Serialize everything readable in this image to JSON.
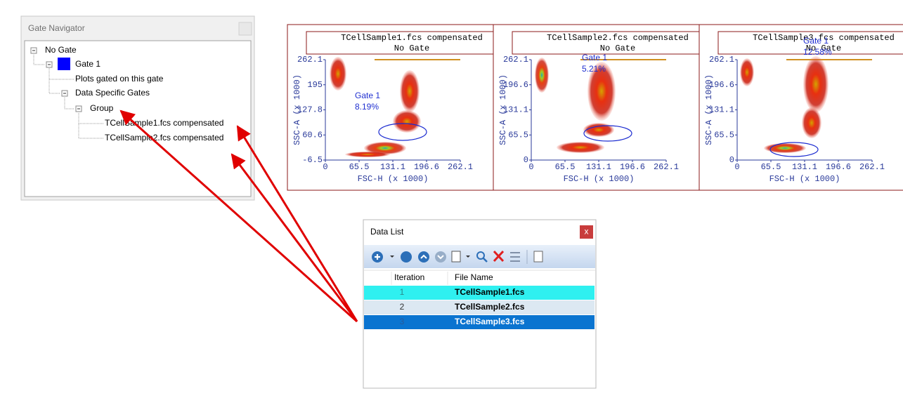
{
  "gate_navigator": {
    "title": "Gate Navigator",
    "tree": [
      "No Gate",
      "Gate 1",
      "Plots gated on this gate",
      "Data Specific Gates",
      "Group",
      "TCellSample1.fcs compensated",
      "TCellSample2.fcs compensated"
    ]
  },
  "plots": [
    {
      "title": "TCellSample1.fcs compensated",
      "subtitle": "No Gate",
      "gate_label": "Gate 1",
      "gate_percent": "8.19%",
      "y_label": "SSC-A (x 1000)",
      "x_label": "FSC-H (x 1000)",
      "y_ticks": [
        "262.1",
        "195",
        "127.8",
        "60.6",
        "-6.5"
      ],
      "x_ticks": [
        "0",
        "65.5",
        "131.1",
        "196.6",
        "262.1"
      ]
    },
    {
      "title": "TCellSample2.fcs compensated",
      "subtitle": "No Gate",
      "gate_label": "Gate 1",
      "gate_percent": "5.21%",
      "y_label": "SSC-A (x 1000)",
      "x_label": "FSC-H (x 1000)",
      "y_ticks": [
        "262.1",
        "196.6",
        "131.1",
        "65.5",
        "0"
      ],
      "x_ticks": [
        "0",
        "65.5",
        "131.1",
        "196.6",
        "262.1"
      ]
    },
    {
      "title": "TCellSample3.fcs compensated",
      "subtitle": "No Gate",
      "gate_label": "Gate 1",
      "gate_percent": "12.58%",
      "y_label": "SSC-A (x 1000)",
      "x_label": "FSC-H (x 1000)",
      "y_ticks": [
        "262.1",
        "196.6",
        "131.1",
        "65.5",
        "0"
      ],
      "x_ticks": [
        "0",
        "65.5",
        "131.1",
        "196.6",
        "262.1"
      ]
    }
  ],
  "data_list": {
    "title": "Data List",
    "close": "x",
    "columns": [
      "Iteration",
      "File Name"
    ],
    "rows": [
      [
        "1",
        "TCellSample1.fcs"
      ],
      [
        "2",
        "TCellSample2.fcs"
      ],
      [
        "3",
        "TCellSample3.fcs"
      ]
    ]
  }
}
